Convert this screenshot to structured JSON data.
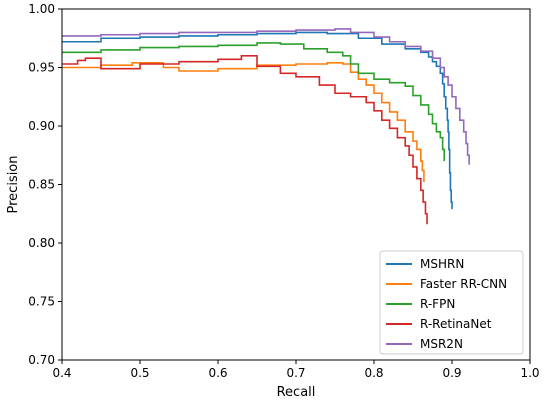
{
  "chart_data": {
    "type": "line",
    "title": "",
    "xlabel": "Recall",
    "ylabel": "Precision",
    "xlim": [
      0.4,
      1.0
    ],
    "ylim": [
      0.7,
      1.0
    ],
    "x_ticks": [
      "0.4",
      "0.5",
      "0.6",
      "0.7",
      "0.8",
      "0.9",
      "1.0"
    ],
    "y_ticks": [
      "0.70",
      "0.75",
      "0.80",
      "0.85",
      "0.90",
      "0.95",
      "1.00"
    ],
    "grid": false,
    "legend_position": "lower-right",
    "series": [
      {
        "name": "MSHRN",
        "color": "#1f77b4",
        "points": [
          [
            0.4,
            0.972
          ],
          [
            0.45,
            0.975
          ],
          [
            0.5,
            0.976
          ],
          [
            0.55,
            0.977
          ],
          [
            0.6,
            0.978
          ],
          [
            0.65,
            0.979
          ],
          [
            0.7,
            0.98
          ],
          [
            0.74,
            0.979
          ],
          [
            0.78,
            0.975
          ],
          [
            0.81,
            0.97
          ],
          [
            0.84,
            0.966
          ],
          [
            0.86,
            0.963
          ],
          [
            0.87,
            0.959
          ],
          [
            0.875,
            0.955
          ],
          [
            0.88,
            0.951
          ],
          [
            0.885,
            0.945
          ],
          [
            0.888,
            0.936
          ],
          [
            0.89,
            0.925
          ],
          [
            0.892,
            0.915
          ],
          [
            0.894,
            0.905
          ],
          [
            0.895,
            0.895
          ],
          [
            0.896,
            0.88
          ],
          [
            0.897,
            0.86
          ],
          [
            0.898,
            0.845
          ],
          [
            0.899,
            0.835
          ],
          [
            0.9,
            0.829
          ]
        ]
      },
      {
        "name": "Faster RR-CNN",
        "color": "#ff7f0e",
        "points": [
          [
            0.4,
            0.95
          ],
          [
            0.45,
            0.952
          ],
          [
            0.49,
            0.954
          ],
          [
            0.53,
            0.95
          ],
          [
            0.55,
            0.947
          ],
          [
            0.6,
            0.949
          ],
          [
            0.65,
            0.952
          ],
          [
            0.7,
            0.953
          ],
          [
            0.74,
            0.954
          ],
          [
            0.76,
            0.953
          ],
          [
            0.77,
            0.946
          ],
          [
            0.78,
            0.94
          ],
          [
            0.79,
            0.935
          ],
          [
            0.8,
            0.928
          ],
          [
            0.81,
            0.92
          ],
          [
            0.82,
            0.912
          ],
          [
            0.83,
            0.905
          ],
          [
            0.84,
            0.895
          ],
          [
            0.85,
            0.887
          ],
          [
            0.855,
            0.88
          ],
          [
            0.86,
            0.87
          ],
          [
            0.862,
            0.862
          ],
          [
            0.864,
            0.852
          ]
        ]
      },
      {
        "name": "R-FPN",
        "color": "#2ca02c",
        "points": [
          [
            0.4,
            0.963
          ],
          [
            0.45,
            0.965
          ],
          [
            0.5,
            0.967
          ],
          [
            0.55,
            0.968
          ],
          [
            0.6,
            0.969
          ],
          [
            0.65,
            0.971
          ],
          [
            0.68,
            0.97
          ],
          [
            0.71,
            0.966
          ],
          [
            0.74,
            0.963
          ],
          [
            0.76,
            0.96
          ],
          [
            0.77,
            0.953
          ],
          [
            0.78,
            0.945
          ],
          [
            0.8,
            0.94
          ],
          [
            0.82,
            0.937
          ],
          [
            0.84,
            0.934
          ],
          [
            0.85,
            0.926
          ],
          [
            0.86,
            0.918
          ],
          [
            0.87,
            0.91
          ],
          [
            0.875,
            0.902
          ],
          [
            0.88,
            0.895
          ],
          [
            0.885,
            0.89
          ],
          [
            0.888,
            0.88
          ],
          [
            0.89,
            0.87
          ]
        ]
      },
      {
        "name": "R-RetinaNet",
        "color": "#d62728",
        "points": [
          [
            0.4,
            0.953
          ],
          [
            0.42,
            0.956
          ],
          [
            0.43,
            0.958
          ],
          [
            0.45,
            0.949
          ],
          [
            0.5,
            0.953
          ],
          [
            0.55,
            0.955
          ],
          [
            0.6,
            0.957
          ],
          [
            0.63,
            0.96
          ],
          [
            0.65,
            0.951
          ],
          [
            0.68,
            0.945
          ],
          [
            0.7,
            0.942
          ],
          [
            0.73,
            0.935
          ],
          [
            0.75,
            0.928
          ],
          [
            0.77,
            0.925
          ],
          [
            0.79,
            0.92
          ],
          [
            0.8,
            0.913
          ],
          [
            0.81,
            0.905
          ],
          [
            0.82,
            0.898
          ],
          [
            0.83,
            0.89
          ],
          [
            0.84,
            0.883
          ],
          [
            0.845,
            0.875
          ],
          [
            0.85,
            0.865
          ],
          [
            0.855,
            0.855
          ],
          [
            0.86,
            0.845
          ],
          [
            0.863,
            0.835
          ],
          [
            0.866,
            0.825
          ],
          [
            0.868,
            0.816
          ]
        ]
      },
      {
        "name": "MSR2N",
        "color": "#9467bd",
        "points": [
          [
            0.4,
            0.977
          ],
          [
            0.45,
            0.978
          ],
          [
            0.5,
            0.979
          ],
          [
            0.55,
            0.98
          ],
          [
            0.6,
            0.98
          ],
          [
            0.65,
            0.981
          ],
          [
            0.7,
            0.982
          ],
          [
            0.75,
            0.983
          ],
          [
            0.77,
            0.98
          ],
          [
            0.8,
            0.976
          ],
          [
            0.82,
            0.972
          ],
          [
            0.84,
            0.968
          ],
          [
            0.86,
            0.964
          ],
          [
            0.875,
            0.958
          ],
          [
            0.885,
            0.95
          ],
          [
            0.89,
            0.942
          ],
          [
            0.895,
            0.935
          ],
          [
            0.9,
            0.925
          ],
          [
            0.905,
            0.915
          ],
          [
            0.91,
            0.905
          ],
          [
            0.915,
            0.895
          ],
          [
            0.918,
            0.885
          ],
          [
            0.92,
            0.875
          ],
          [
            0.922,
            0.867
          ]
        ]
      }
    ]
  }
}
